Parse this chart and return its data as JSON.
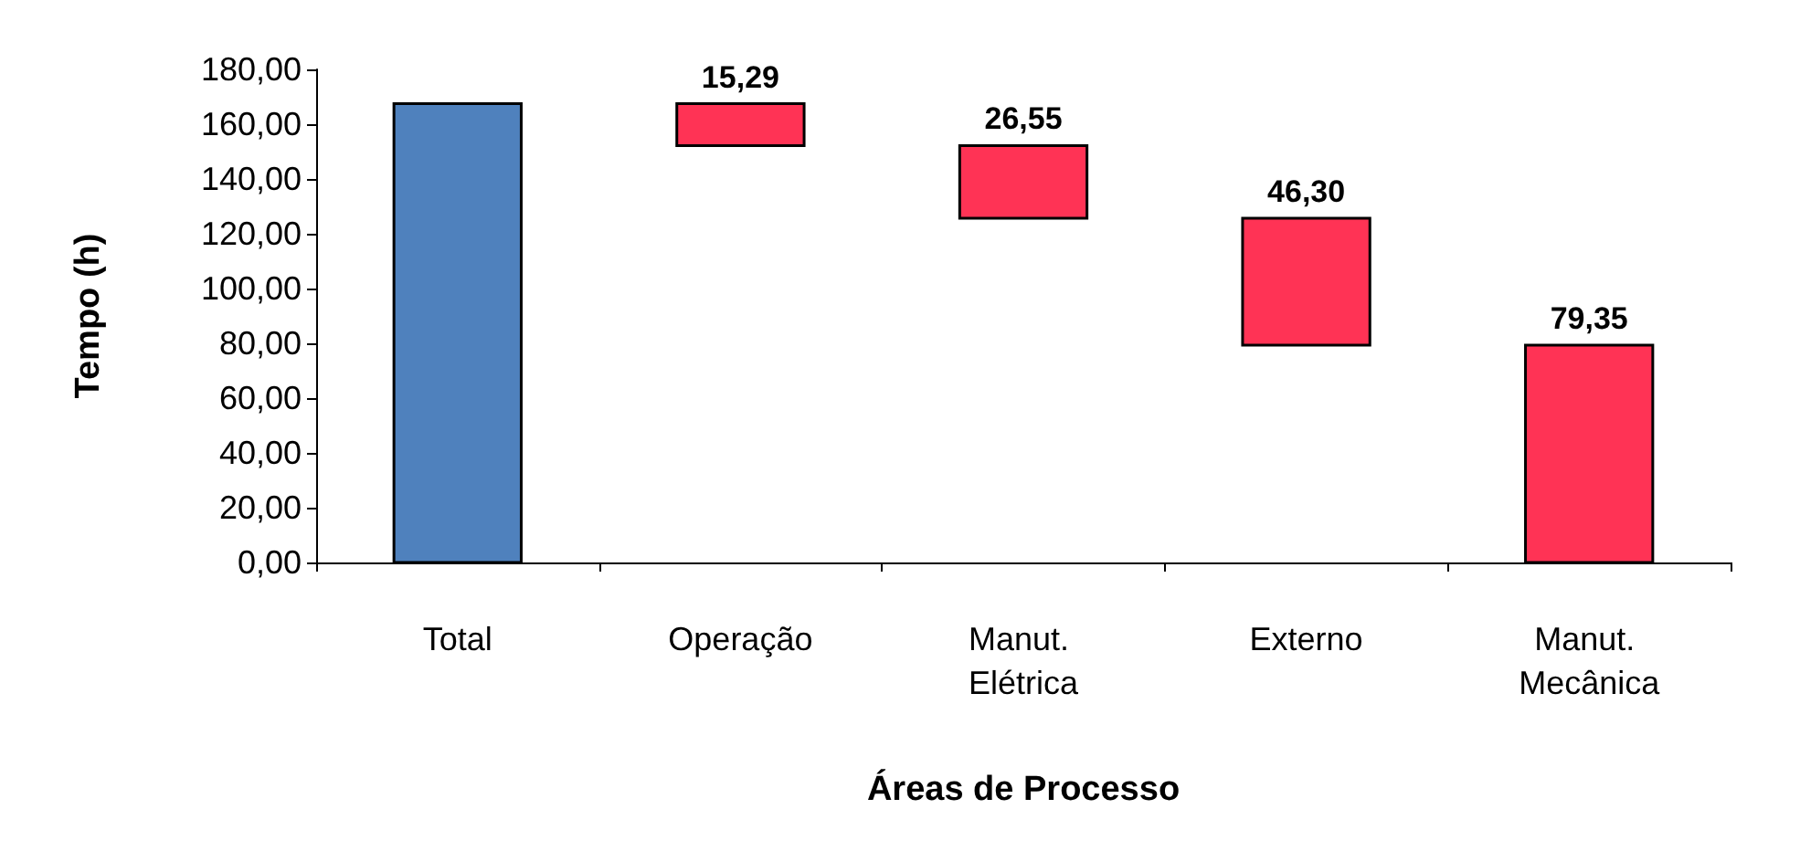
{
  "chart_data": {
    "type": "bar",
    "xlabel": "Áreas de Processo",
    "ylabel": "Tempo (h)",
    "categories": [
      "Total",
      "Operação",
      "Manut. Elétrica",
      "Externo",
      "Manut. Mecânica"
    ],
    "values": [
      167.5,
      15.29,
      26.55,
      46.3,
      79.35
    ],
    "base": [
      0,
      152.2,
      125.65,
      79.35,
      0
    ],
    "colors": [
      "#4f81bd",
      "#ff3355",
      "#ff3355",
      "#ff3355",
      "#ff3355"
    ],
    "value_labels": [
      null,
      "15,29",
      "26,55",
      "46,30",
      "79,35"
    ],
    "ylim": [
      0,
      180
    ],
    "yticks": [
      {
        "value": 0,
        "label": "0,00"
      },
      {
        "value": 20,
        "label": "20,00"
      },
      {
        "value": 40,
        "label": "40,00"
      },
      {
        "value": 60,
        "label": "60,00"
      },
      {
        "value": 80,
        "label": "80,00"
      },
      {
        "value": 100,
        "label": "100,00"
      },
      {
        "value": 120,
        "label": "120,00"
      },
      {
        "value": 140,
        "label": "140,00"
      },
      {
        "value": 160,
        "label": "160,00"
      },
      {
        "value": 180,
        "label": "180,00"
      }
    ],
    "grid": false
  }
}
